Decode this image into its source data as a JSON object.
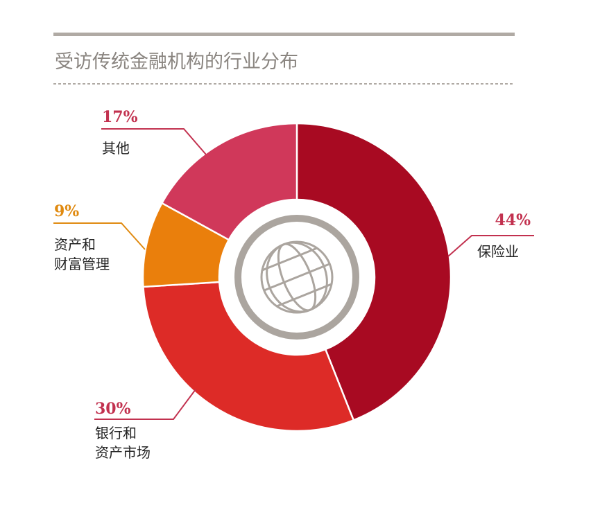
{
  "header": {
    "title": "受访传统金融机构的行业分布"
  },
  "chart_data": {
    "type": "pie",
    "categories": [
      "保险业",
      "银行和资产市场",
      "资产和财富管理",
      "其他"
    ],
    "values": [
      44,
      30,
      9,
      17
    ],
    "value_labels": [
      "44%",
      "30%",
      "9%",
      "17%"
    ],
    "category_label_lines": [
      [
        "保险业"
      ],
      [
        "银行和",
        "资产市场"
      ],
      [
        "资产和",
        "财富管理"
      ],
      [
        "其他"
      ]
    ],
    "colors": [
      "#a80a22",
      "#dd2b27",
      "#ea7f0c",
      "#d0385a"
    ],
    "label_colors": [
      "#c2314f",
      "#c2314f",
      "#e08a10",
      "#c2314f"
    ],
    "center_icon": "globe-icon"
  }
}
